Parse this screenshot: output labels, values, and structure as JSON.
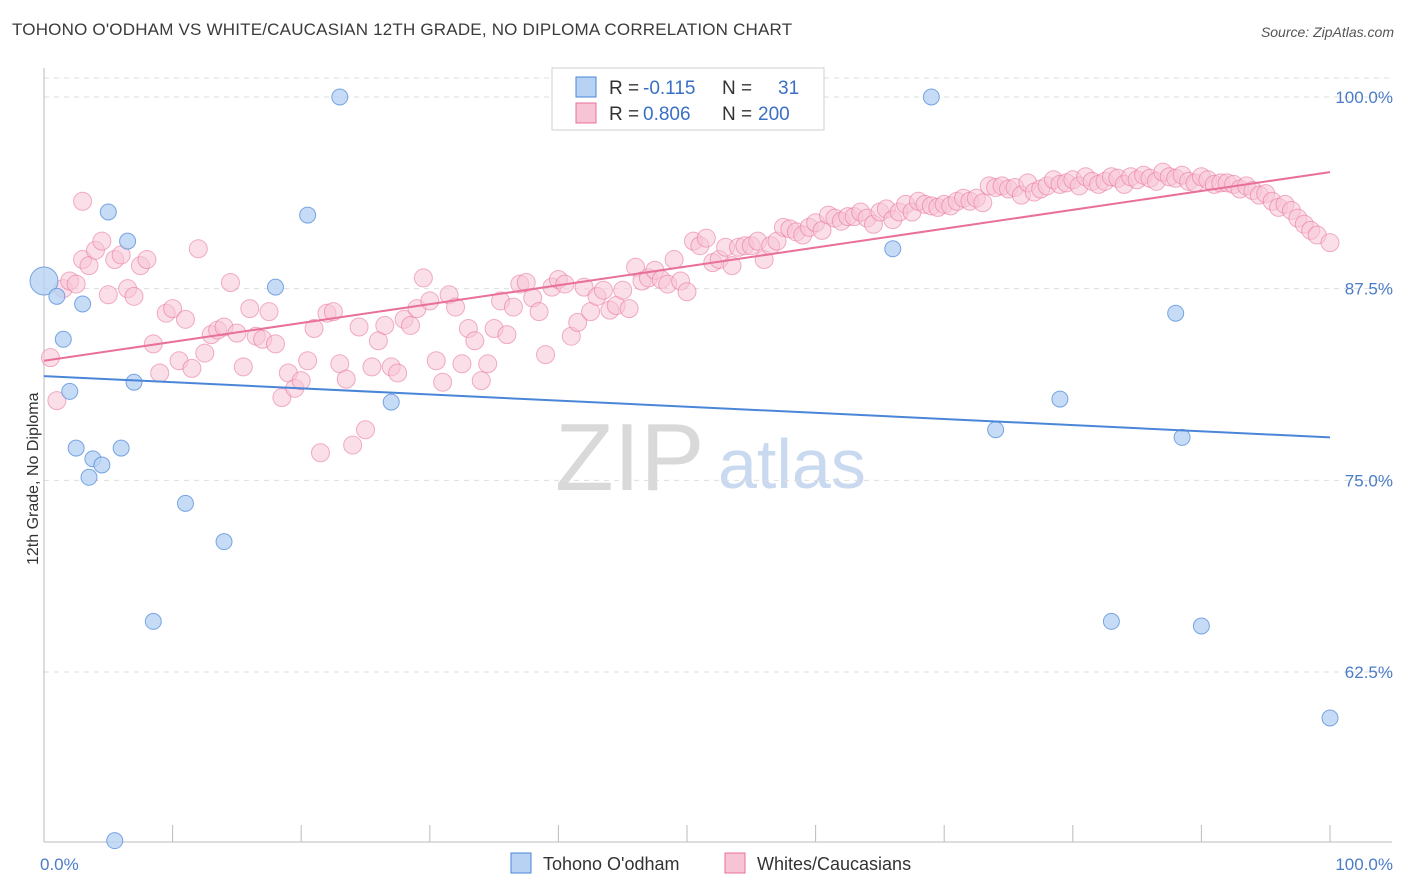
{
  "title": "TOHONO O'ODHAM VS WHITE/CAUCASIAN 12TH GRADE, NO DIPLOMA CORRELATION CHART",
  "source": "Source: ZipAtlas.com",
  "watermark": {
    "zip": "ZIP",
    "atlas": "atlas"
  },
  "colors": {
    "blue": "#4a86d8",
    "blue_fill": "#b8d2f3",
    "pink": "#e8709a",
    "pink_fill": "#f7c4d6",
    "grid": "#dddddd",
    "label": "#4a7cc7"
  },
  "legend": {
    "rows": [
      {
        "r_label": "R =",
        "r_value": "-0.115",
        "n_label": "N =",
        "n_value": "31"
      },
      {
        "r_label": "R =",
        "r_value": "0.806",
        "n_label": "N =",
        "n_value": "200"
      }
    ]
  },
  "bottom_legend": [
    "Tohono O'odham",
    "Whites/Caucasians"
  ],
  "chart_data": {
    "type": "scatter",
    "title": "TOHONO O'ODHAM VS WHITE/CAUCASIAN 12TH GRADE, NO DIPLOMA CORRELATION CHART",
    "xlabel": "",
    "ylabel": "12th Grade, No Diploma",
    "xlim": [
      0,
      100
    ],
    "ylim": [
      51,
      101
    ],
    "x_tick_labels": [
      "0.0%",
      "100.0%"
    ],
    "y_tick_values": [
      62.5,
      75.0,
      87.5,
      100.0
    ],
    "y_tick_labels": [
      "62.5%",
      "75.0%",
      "87.5%",
      "100.0%"
    ],
    "grid": true,
    "series": [
      {
        "name": "Tohono O'odham",
        "color": "#4a86d8",
        "trend": {
          "x": [
            0,
            100
          ],
          "y": [
            81.8,
            77.8
          ]
        },
        "points": [
          [
            0,
            88.0
          ],
          [
            1,
            87.0
          ],
          [
            1.5,
            84.2
          ],
          [
            2,
            80.8
          ],
          [
            2.5,
            77.1
          ],
          [
            3,
            86.5
          ],
          [
            3.5,
            75.2
          ],
          [
            3.8,
            76.4
          ],
          [
            4.5,
            76.0
          ],
          [
            5,
            92.5
          ],
          [
            5.5,
            51.5
          ],
          [
            6,
            77.1
          ],
          [
            6.5,
            90.6
          ],
          [
            7,
            81.4
          ],
          [
            8.5,
            65.8
          ],
          [
            11,
            73.5
          ],
          [
            14,
            71.0
          ],
          [
            18,
            87.6
          ],
          [
            20.5,
            92.3
          ],
          [
            23,
            100.0
          ],
          [
            27,
            80.1
          ],
          [
            48,
            100.0
          ],
          [
            66,
            90.1
          ],
          [
            69,
            100.0
          ],
          [
            74,
            78.3
          ],
          [
            79,
            80.3
          ],
          [
            83,
            65.8
          ],
          [
            88,
            85.9
          ],
          [
            88.5,
            77.8
          ],
          [
            90,
            65.5
          ],
          [
            100,
            59.5
          ]
        ]
      },
      {
        "name": "Whites/Caucasians",
        "color": "#e8709a",
        "trend": {
          "x": [
            0,
            100
          ],
          "y": [
            82.8,
            95.1
          ]
        },
        "points": [
          [
            0.5,
            83.0
          ],
          [
            1,
            80.2
          ],
          [
            1.5,
            87.5
          ],
          [
            2,
            88.0
          ],
          [
            2.5,
            87.8
          ],
          [
            3,
            89.4
          ],
          [
            3.5,
            89.0
          ],
          [
            4,
            90.0
          ],
          [
            4.5,
            90.6
          ],
          [
            5,
            87.1
          ],
          [
            5.5,
            89.4
          ],
          [
            6,
            89.7
          ],
          [
            6.5,
            87.5
          ],
          [
            7,
            87.0
          ],
          [
            7.5,
            89.0
          ],
          [
            8,
            89.4
          ],
          [
            8.5,
            83.9
          ],
          [
            9,
            82.0
          ],
          [
            9.5,
            85.9
          ],
          [
            10,
            86.2
          ],
          [
            10.5,
            82.8
          ],
          [
            11,
            85.5
          ],
          [
            11.5,
            82.3
          ],
          [
            12,
            90.1
          ],
          [
            12.5,
            83.3
          ],
          [
            13,
            84.5
          ],
          [
            13.5,
            84.8
          ],
          [
            14,
            85.0
          ],
          [
            14.5,
            87.9
          ],
          [
            15,
            84.6
          ],
          [
            15.5,
            82.4
          ],
          [
            16,
            86.2
          ],
          [
            16.5,
            84.4
          ],
          [
            17,
            84.2
          ],
          [
            17.5,
            86.0
          ],
          [
            18,
            83.9
          ],
          [
            18.5,
            80.4
          ],
          [
            19,
            82.0
          ],
          [
            19.5,
            81.0
          ],
          [
            20,
            81.5
          ],
          [
            20.5,
            82.8
          ],
          [
            21,
            84.9
          ],
          [
            21.5,
            76.8
          ],
          [
            22,
            85.9
          ],
          [
            22.5,
            86.0
          ],
          [
            23,
            82.6
          ],
          [
            23.5,
            81.6
          ],
          [
            24,
            77.3
          ],
          [
            24.5,
            85.0
          ],
          [
            25,
            78.3
          ],
          [
            25.5,
            82.4
          ],
          [
            26,
            84.1
          ],
          [
            26.5,
            85.1
          ],
          [
            27,
            82.4
          ],
          [
            27.5,
            82.0
          ],
          [
            28,
            85.5
          ],
          [
            28.5,
            85.1
          ],
          [
            29,
            86.2
          ],
          [
            29.5,
            88.2
          ],
          [
            30,
            86.7
          ],
          [
            30.5,
            82.8
          ],
          [
            31,
            81.4
          ],
          [
            31.5,
            87.1
          ],
          [
            32,
            86.3
          ],
          [
            32.5,
            82.6
          ],
          [
            33,
            84.9
          ],
          [
            33.5,
            84.1
          ],
          [
            34,
            81.5
          ],
          [
            34.5,
            82.6
          ],
          [
            35,
            84.9
          ],
          [
            35.5,
            86.7
          ],
          [
            36,
            84.5
          ],
          [
            36.5,
            86.3
          ],
          [
            37,
            87.8
          ],
          [
            37.5,
            87.9
          ],
          [
            38,
            86.9
          ],
          [
            38.5,
            86.0
          ],
          [
            39,
            83.2
          ],
          [
            39.5,
            87.6
          ],
          [
            40,
            88.1
          ],
          [
            40.5,
            87.8
          ],
          [
            41,
            84.4
          ],
          [
            41.5,
            85.3
          ],
          [
            42,
            87.6
          ],
          [
            42.5,
            86.0
          ],
          [
            43,
            87.0
          ],
          [
            43.5,
            87.4
          ],
          [
            44,
            86.1
          ],
          [
            44.5,
            86.4
          ],
          [
            45,
            87.4
          ],
          [
            45.5,
            86.2
          ],
          [
            46,
            88.9
          ],
          [
            46.5,
            88.0
          ],
          [
            47,
            88.2
          ],
          [
            47.5,
            88.7
          ],
          [
            48,
            88.1
          ],
          [
            48.5,
            87.8
          ],
          [
            49,
            89.4
          ],
          [
            49.5,
            88.0
          ],
          [
            50,
            87.3
          ],
          [
            50.5,
            90.6
          ],
          [
            51,
            90.3
          ],
          [
            51.5,
            90.8
          ],
          [
            52,
            89.2
          ],
          [
            52.5,
            89.4
          ],
          [
            53,
            90.2
          ],
          [
            53.5,
            89.0
          ],
          [
            54,
            90.2
          ],
          [
            54.5,
            90.3
          ],
          [
            55,
            90.3
          ],
          [
            55.5,
            90.6
          ],
          [
            56,
            89.4
          ],
          [
            56.5,
            90.3
          ],
          [
            57,
            90.6
          ],
          [
            57.5,
            91.5
          ],
          [
            58,
            91.4
          ],
          [
            58.5,
            91.2
          ],
          [
            59,
            91.0
          ],
          [
            59.5,
            91.5
          ],
          [
            60,
            91.8
          ],
          [
            60.5,
            91.3
          ],
          [
            61,
            92.3
          ],
          [
            61.5,
            92.1
          ],
          [
            62,
            91.9
          ],
          [
            62.5,
            92.2
          ],
          [
            63,
            92.2
          ],
          [
            63.5,
            92.5
          ],
          [
            64,
            92.1
          ],
          [
            64.5,
            91.7
          ],
          [
            65,
            92.5
          ],
          [
            65.5,
            92.7
          ],
          [
            66,
            92.0
          ],
          [
            66.5,
            92.5
          ],
          [
            67,
            93.0
          ],
          [
            67.5,
            92.5
          ],
          [
            68,
            93.2
          ],
          [
            68.5,
            93.0
          ],
          [
            69,
            92.9
          ],
          [
            69.5,
            92.8
          ],
          [
            70,
            93.0
          ],
          [
            70.5,
            92.9
          ],
          [
            71,
            93.2
          ],
          [
            71.5,
            93.4
          ],
          [
            72,
            93.2
          ],
          [
            72.5,
            93.4
          ],
          [
            73,
            93.1
          ],
          [
            73.5,
            94.2
          ],
          [
            74,
            94.1
          ],
          [
            74.5,
            94.2
          ],
          [
            75,
            94.0
          ],
          [
            75.5,
            94.1
          ],
          [
            76,
            93.6
          ],
          [
            76.5,
            94.4
          ],
          [
            77,
            93.8
          ],
          [
            77.5,
            94.0
          ],
          [
            78,
            94.2
          ],
          [
            78.5,
            94.6
          ],
          [
            79,
            94.3
          ],
          [
            79.5,
            94.4
          ],
          [
            80,
            94.6
          ],
          [
            80.5,
            94.2
          ],
          [
            81,
            94.8
          ],
          [
            81.5,
            94.5
          ],
          [
            82,
            94.3
          ],
          [
            82.5,
            94.5
          ],
          [
            83,
            94.8
          ],
          [
            83.5,
            94.7
          ],
          [
            84,
            94.3
          ],
          [
            84.5,
            94.8
          ],
          [
            85,
            94.6
          ],
          [
            85.5,
            94.9
          ],
          [
            86,
            94.7
          ],
          [
            86.5,
            94.5
          ],
          [
            87,
            95.1
          ],
          [
            87.5,
            94.8
          ],
          [
            88,
            94.7
          ],
          [
            88.5,
            94.9
          ],
          [
            89,
            94.5
          ],
          [
            89.5,
            94.4
          ],
          [
            90,
            94.8
          ],
          [
            90.5,
            94.6
          ],
          [
            91,
            94.3
          ],
          [
            91.5,
            94.4
          ],
          [
            92,
            94.4
          ],
          [
            92.5,
            94.3
          ],
          [
            93,
            94.0
          ],
          [
            93.5,
            94.2
          ],
          [
            94,
            93.9
          ],
          [
            94.5,
            93.6
          ],
          [
            95,
            93.7
          ],
          [
            95.5,
            93.2
          ],
          [
            96,
            92.8
          ],
          [
            96.5,
            93.0
          ],
          [
            97,
            92.6
          ],
          [
            97.5,
            92.1
          ],
          [
            98,
            91.7
          ],
          [
            98.5,
            91.3
          ],
          [
            99,
            91.0
          ],
          [
            100,
            90.5
          ],
          [
            3,
            93.2
          ]
        ]
      }
    ]
  }
}
